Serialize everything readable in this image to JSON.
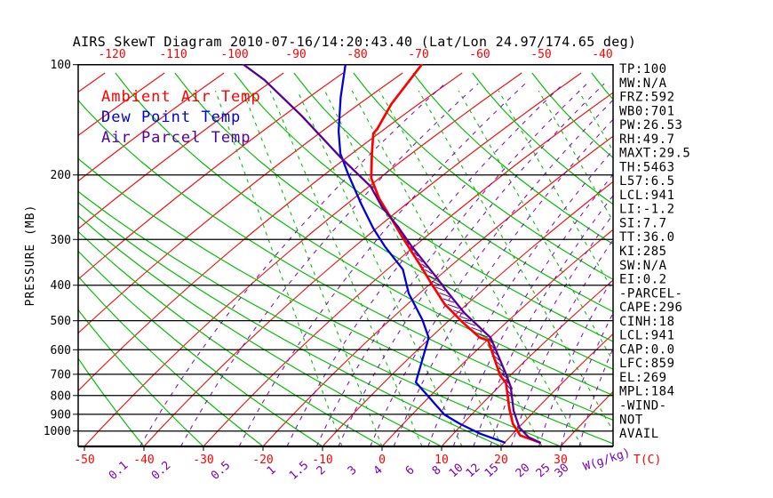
{
  "title": "AIRS SkewT Diagram 2010-07-16/14:20:43.40 (Lat/Lon 24.97/174.65 deg)",
  "legend": {
    "ambient": "Ambient Air Temp",
    "dew": "Dew Point Temp",
    "parcel": "Air Parcel Temp"
  },
  "axes": {
    "pressure_label": "PRESSURE (MB)",
    "temp_axis_label": "T(C)",
    "mixr_axis_label": "W(g/kg)",
    "pressure_ticks": [
      100,
      200,
      300,
      400,
      500,
      600,
      700,
      800,
      900,
      1000
    ],
    "top_temp_labels": [
      -120,
      -110,
      -100,
      -90,
      -80,
      -70,
      -60,
      -50,
      -40
    ],
    "bottom_temp_labels": [
      -50,
      -40,
      -30,
      -20,
      -10,
      0,
      10,
      20,
      30
    ],
    "mixing_ratio_labels": [
      0.1,
      0.2,
      0.5,
      1,
      1.5,
      2,
      3,
      4,
      6,
      8,
      10,
      12,
      15,
      20,
      25,
      30
    ]
  },
  "stats": [
    "TP:100",
    "MW:N/A",
    "FRZ:592",
    "WB0:701",
    "PW:26.53",
    "RH:49.7",
    "MAXT:29.5",
    "TH:5463",
    "L57:6.5",
    "LCL:941",
    "LI:-1.2",
    "SI:7.7",
    "TT:36.0",
    "KI:285",
    "SW:N/A",
    "EI:0.2",
    "-PARCEL-",
    "CAPE:296",
    "CINH:18",
    "LCL:941",
    "CAP:0.0",
    "LFC:859",
    "EL:269",
    "MPL:184",
    "-WIND-",
    "NOT",
    "AVAIL"
  ],
  "colors": {
    "ambient": "#ff0000",
    "dew_point": "#0000dd",
    "parcel": "#550099",
    "isotherm": "#f01010",
    "adiabat": "#00bb00",
    "mixing_ratio": "#7a00b8",
    "grid": "#000000",
    "label_red": "#ff0000",
    "label_purple": "#7a00b8"
  },
  "chart_data": {
    "type": "line",
    "title": "AIRS SkewT Diagram 2010-07-16/14:20:43.40 (Lat/Lon 24.97/174.65 deg)",
    "xlabel": "Temperature (C), skewed axis",
    "ylabel": "Pressure (MB), log scale",
    "ylim": [
      100,
      1000
    ],
    "xlim_bottom_scale": [
      -50,
      30
    ],
    "xlim_top_scale": [
      -120,
      -40
    ],
    "grid": "horizontal pressure lines 100-1000 mb",
    "legend_position": "upper-left inside plot",
    "series": [
      {
        "name": "Ambient Air Temp",
        "color": "#ff0000",
        "points_p_t": [
          [
            100,
            -68.8
          ],
          [
            128,
            -64.6
          ],
          [
            150,
            -61.2
          ],
          [
            154,
            -60.9
          ],
          [
            174,
            -56.8
          ],
          [
            204,
            -51.4
          ],
          [
            232,
            -45.7
          ],
          [
            262,
            -39.7
          ],
          [
            296,
            -33.8
          ],
          [
            351,
            -25.5
          ],
          [
            398,
            -19.6
          ],
          [
            450,
            -13.8
          ],
          [
            503,
            -7.6
          ],
          [
            556,
            -1.7
          ],
          [
            566,
            0.2
          ],
          [
            705,
            8.3
          ],
          [
            740,
            10.6
          ],
          [
            869,
            15.4
          ],
          [
            955,
            18.4
          ],
          [
            1028,
            21.5
          ],
          [
            1075,
            25.9
          ]
        ]
      },
      {
        "name": "Dew Point Temp",
        "color": "#0000dd",
        "points_p_t": [
          [
            100,
            -81.6
          ],
          [
            123,
            -74.6
          ],
          [
            152,
            -67.2
          ],
          [
            175,
            -61.9
          ],
          [
            200,
            -55.9
          ],
          [
            241,
            -47.4
          ],
          [
            280,
            -40.5
          ],
          [
            313,
            -35.0
          ],
          [
            362,
            -27.4
          ],
          [
            421,
            -21.8
          ],
          [
            497,
            -14.6
          ],
          [
            556,
            -10.3
          ],
          [
            736,
            -4.7
          ],
          [
            903,
            5.5
          ],
          [
            955,
            9.5
          ],
          [
            1017,
            14.5
          ],
          [
            1075,
            20.0
          ]
        ]
      },
      {
        "name": "Air Parcel Temp",
        "color": "#550099",
        "points_p_t": [
          [
            100,
            -98.7
          ],
          [
            110,
            -91.6
          ],
          [
            138,
            -76.9
          ],
          [
            179,
            -61.1
          ],
          [
            215,
            -49.7
          ],
          [
            245,
            -43.4
          ],
          [
            277,
            -36.7
          ],
          [
            313,
            -30.5
          ],
          [
            377,
            -20.7
          ],
          [
            421,
            -15.1
          ],
          [
            477,
            -8.7
          ],
          [
            556,
            0.1
          ],
          [
            698,
            9.0
          ],
          [
            757,
            12.0
          ],
          [
            879,
            16.4
          ],
          [
            978,
            20.1
          ],
          [
            1040,
            23.2
          ],
          [
            1075,
            25.9
          ]
        ]
      }
    ],
    "annotations": {
      "hatched_region": "CAPE area hatched between Ambient and Parcel curves from EL (~269 mb) down to LFC (~859 mb)"
    }
  }
}
